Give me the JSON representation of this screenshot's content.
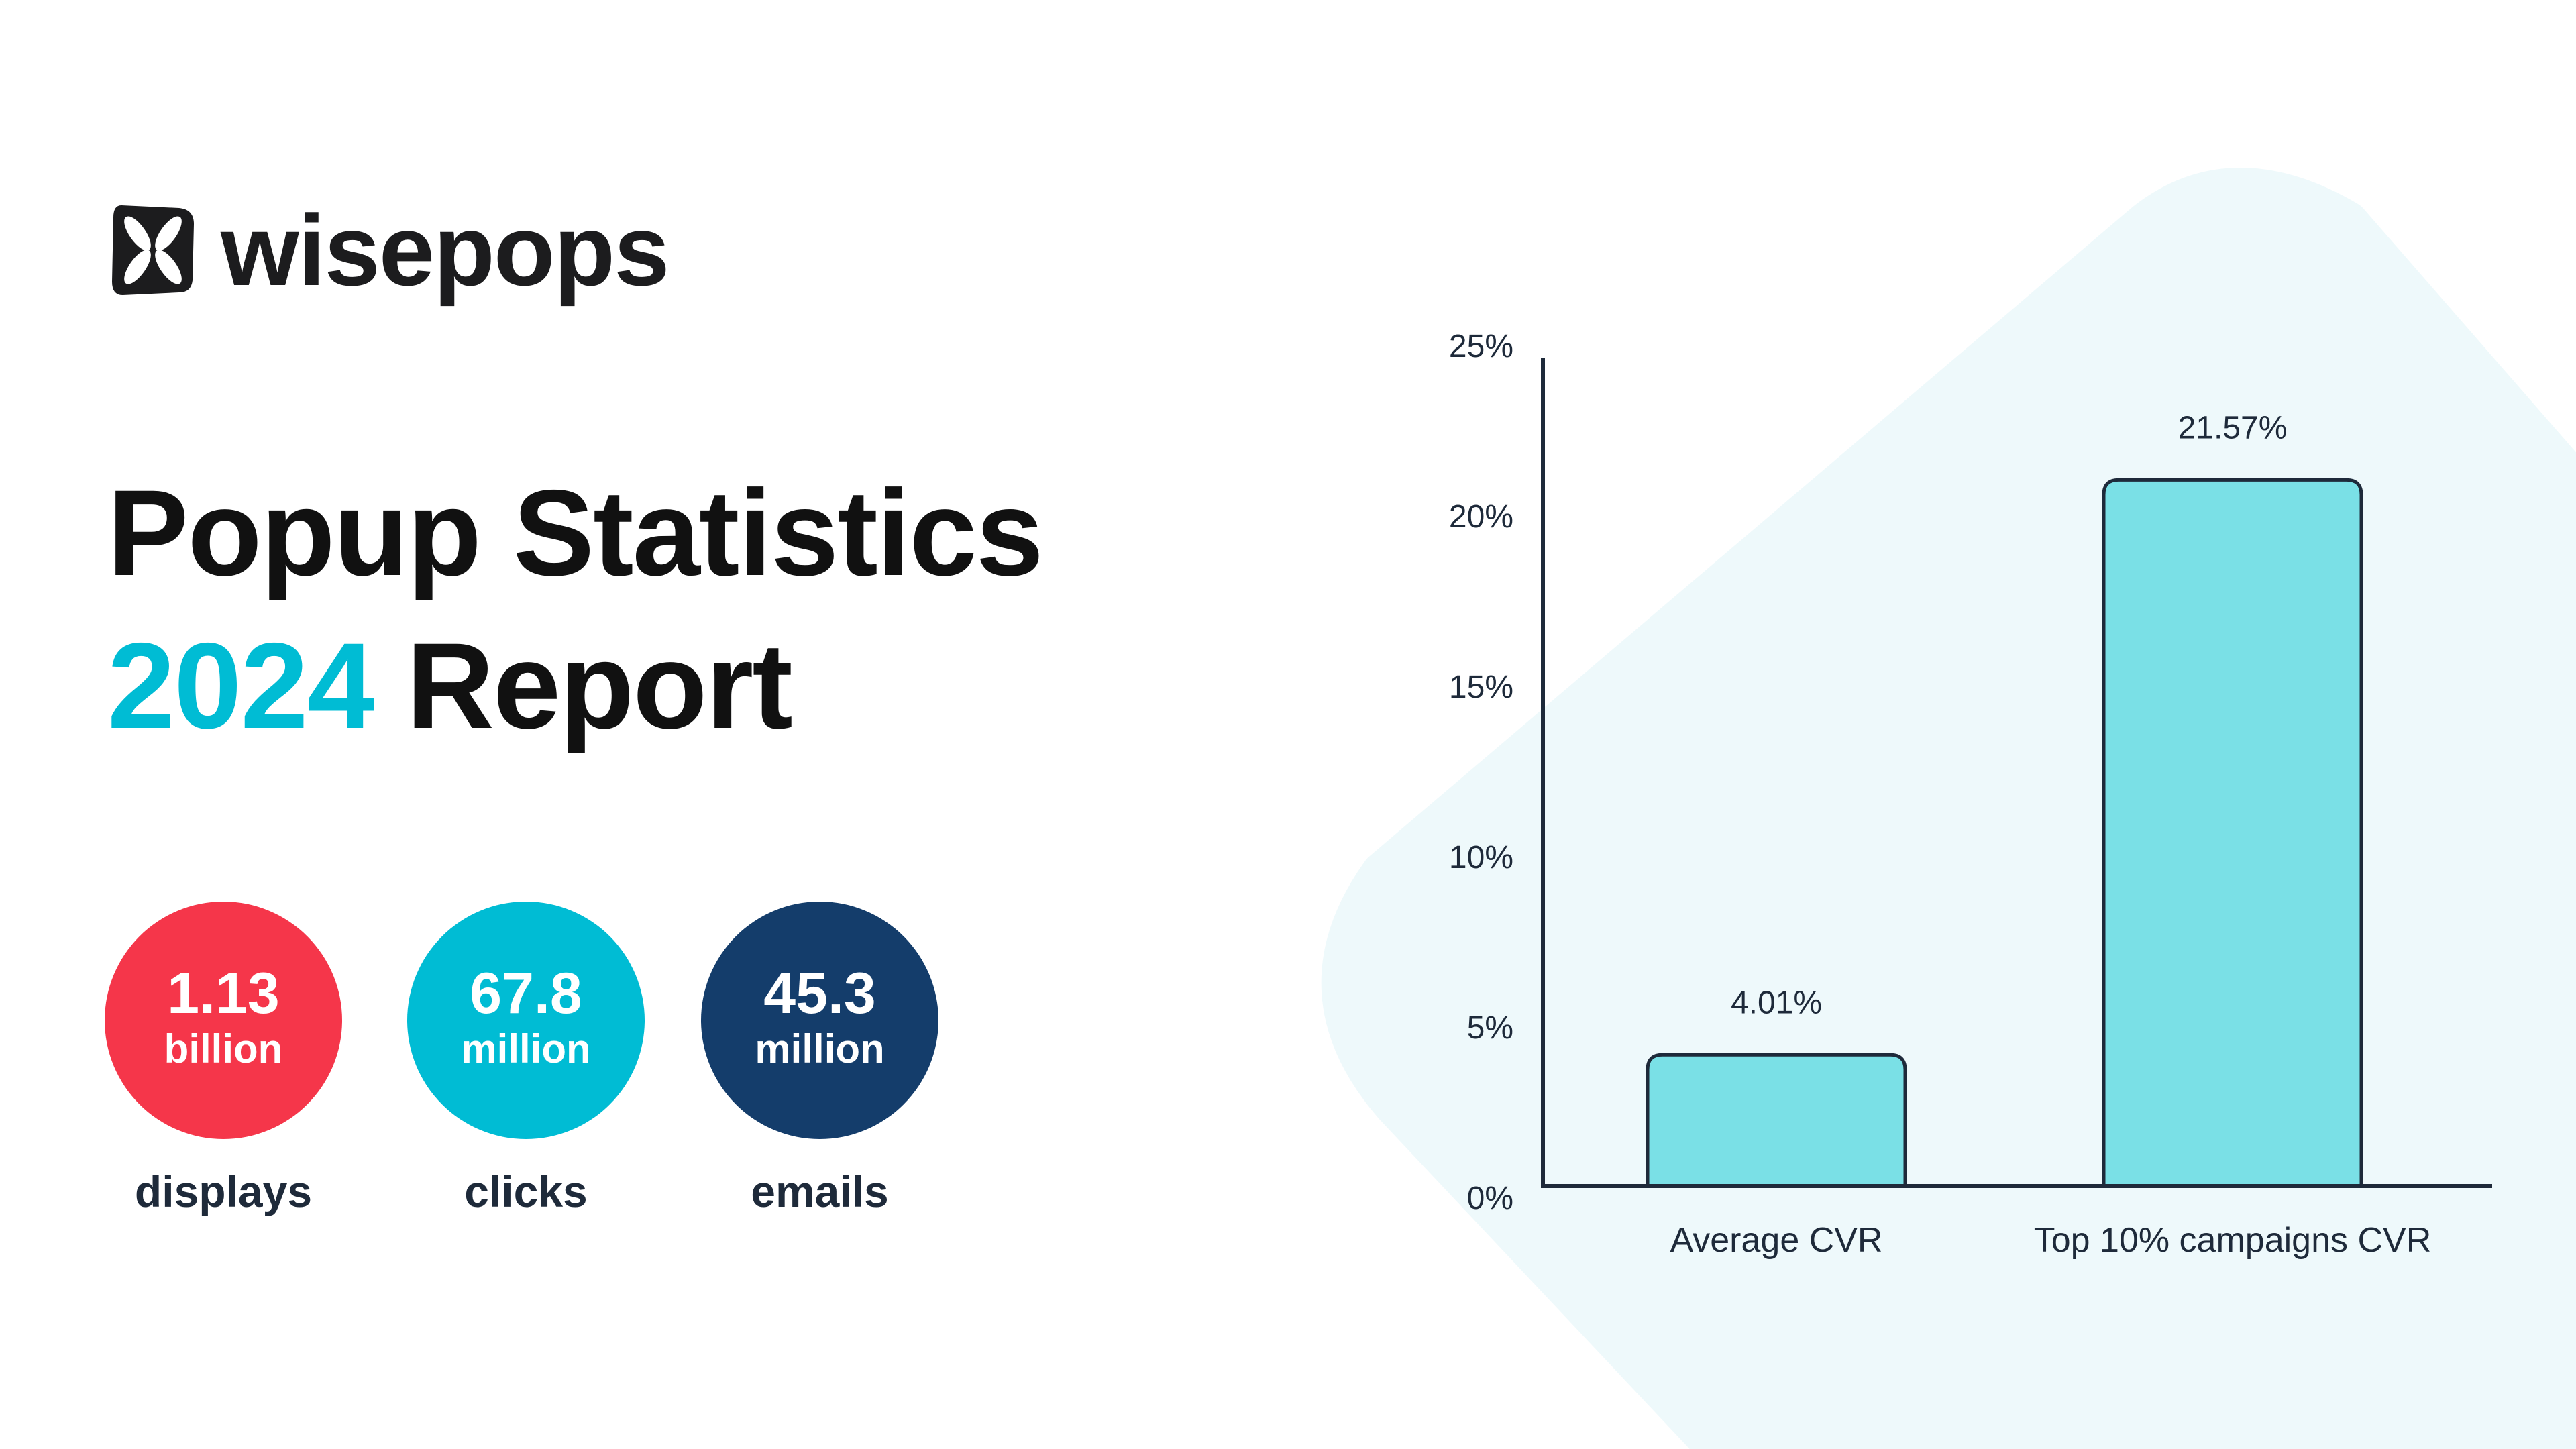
{
  "brand": {
    "name": "wisepops",
    "logo_icon": "clover-icon"
  },
  "title": {
    "line1": "Popup Statistics",
    "year": "2024",
    "line2_rest": "Report"
  },
  "stats": [
    {
      "value": "1.13",
      "unit": "billion",
      "label": "displays",
      "color": "#f5364a"
    },
    {
      "value": "67.8",
      "unit": "million",
      "label": "clicks",
      "color": "#00bcd4"
    },
    {
      "value": "45.3",
      "unit": "million",
      "label": "emails",
      "color": "#143d6b"
    }
  ],
  "colors": {
    "accent": "#00bcd4",
    "bar_fill": "#7ae0e6",
    "background_shape": "#eef9fb",
    "axis": "#1e2a3a"
  },
  "chart_data": {
    "type": "bar",
    "categories": [
      "Average CVR",
      "Top 10% campaigns CVR"
    ],
    "values": [
      4.01,
      21.57
    ],
    "data_labels": [
      "4.01%",
      "21.57%"
    ],
    "ylim": [
      0,
      25
    ],
    "yticks": [
      0,
      5,
      10,
      15,
      20,
      25
    ],
    "ytick_labels": [
      "0%",
      "5%",
      "10%",
      "15%",
      "20%",
      "25%"
    ],
    "grid": false,
    "title": "",
    "xlabel": "",
    "ylabel": ""
  }
}
